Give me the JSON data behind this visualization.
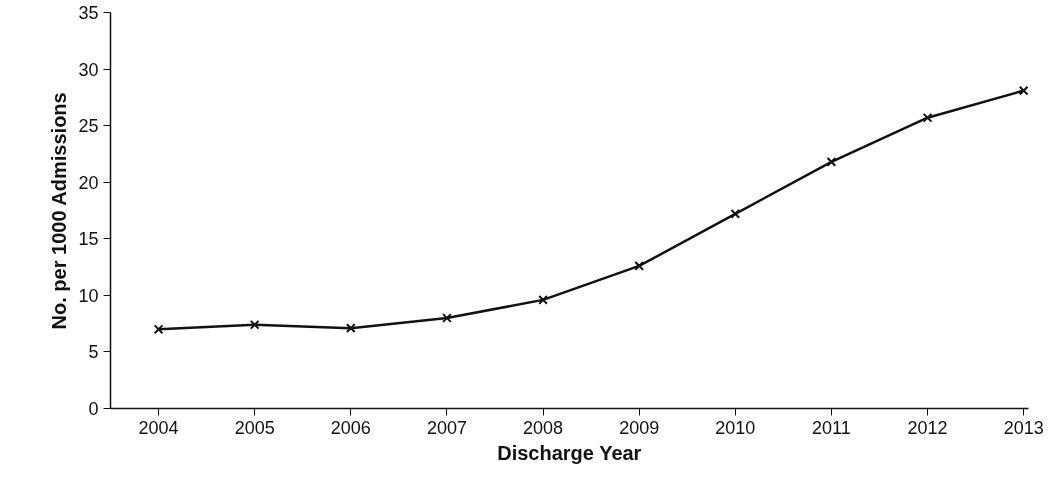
{
  "chart_data": {
    "type": "line",
    "xlabel": "Discharge Year",
    "ylabel": "No. per 1000 Admissions",
    "categories": [
      "2004",
      "2005",
      "2006",
      "2007",
      "2008",
      "2009",
      "2010",
      "2011",
      "2012",
      "2013"
    ],
    "values": [
      7.0,
      7.4,
      7.1,
      8.0,
      9.6,
      12.6,
      17.2,
      21.8,
      25.7,
      28.1
    ],
    "color": "#111111",
    "ylim": [
      0,
      35
    ],
    "yticks": [
      0,
      5,
      10,
      15,
      20,
      25,
      30,
      35
    ],
    "marker": "cross",
    "line_style": "solid",
    "grid": false
  }
}
